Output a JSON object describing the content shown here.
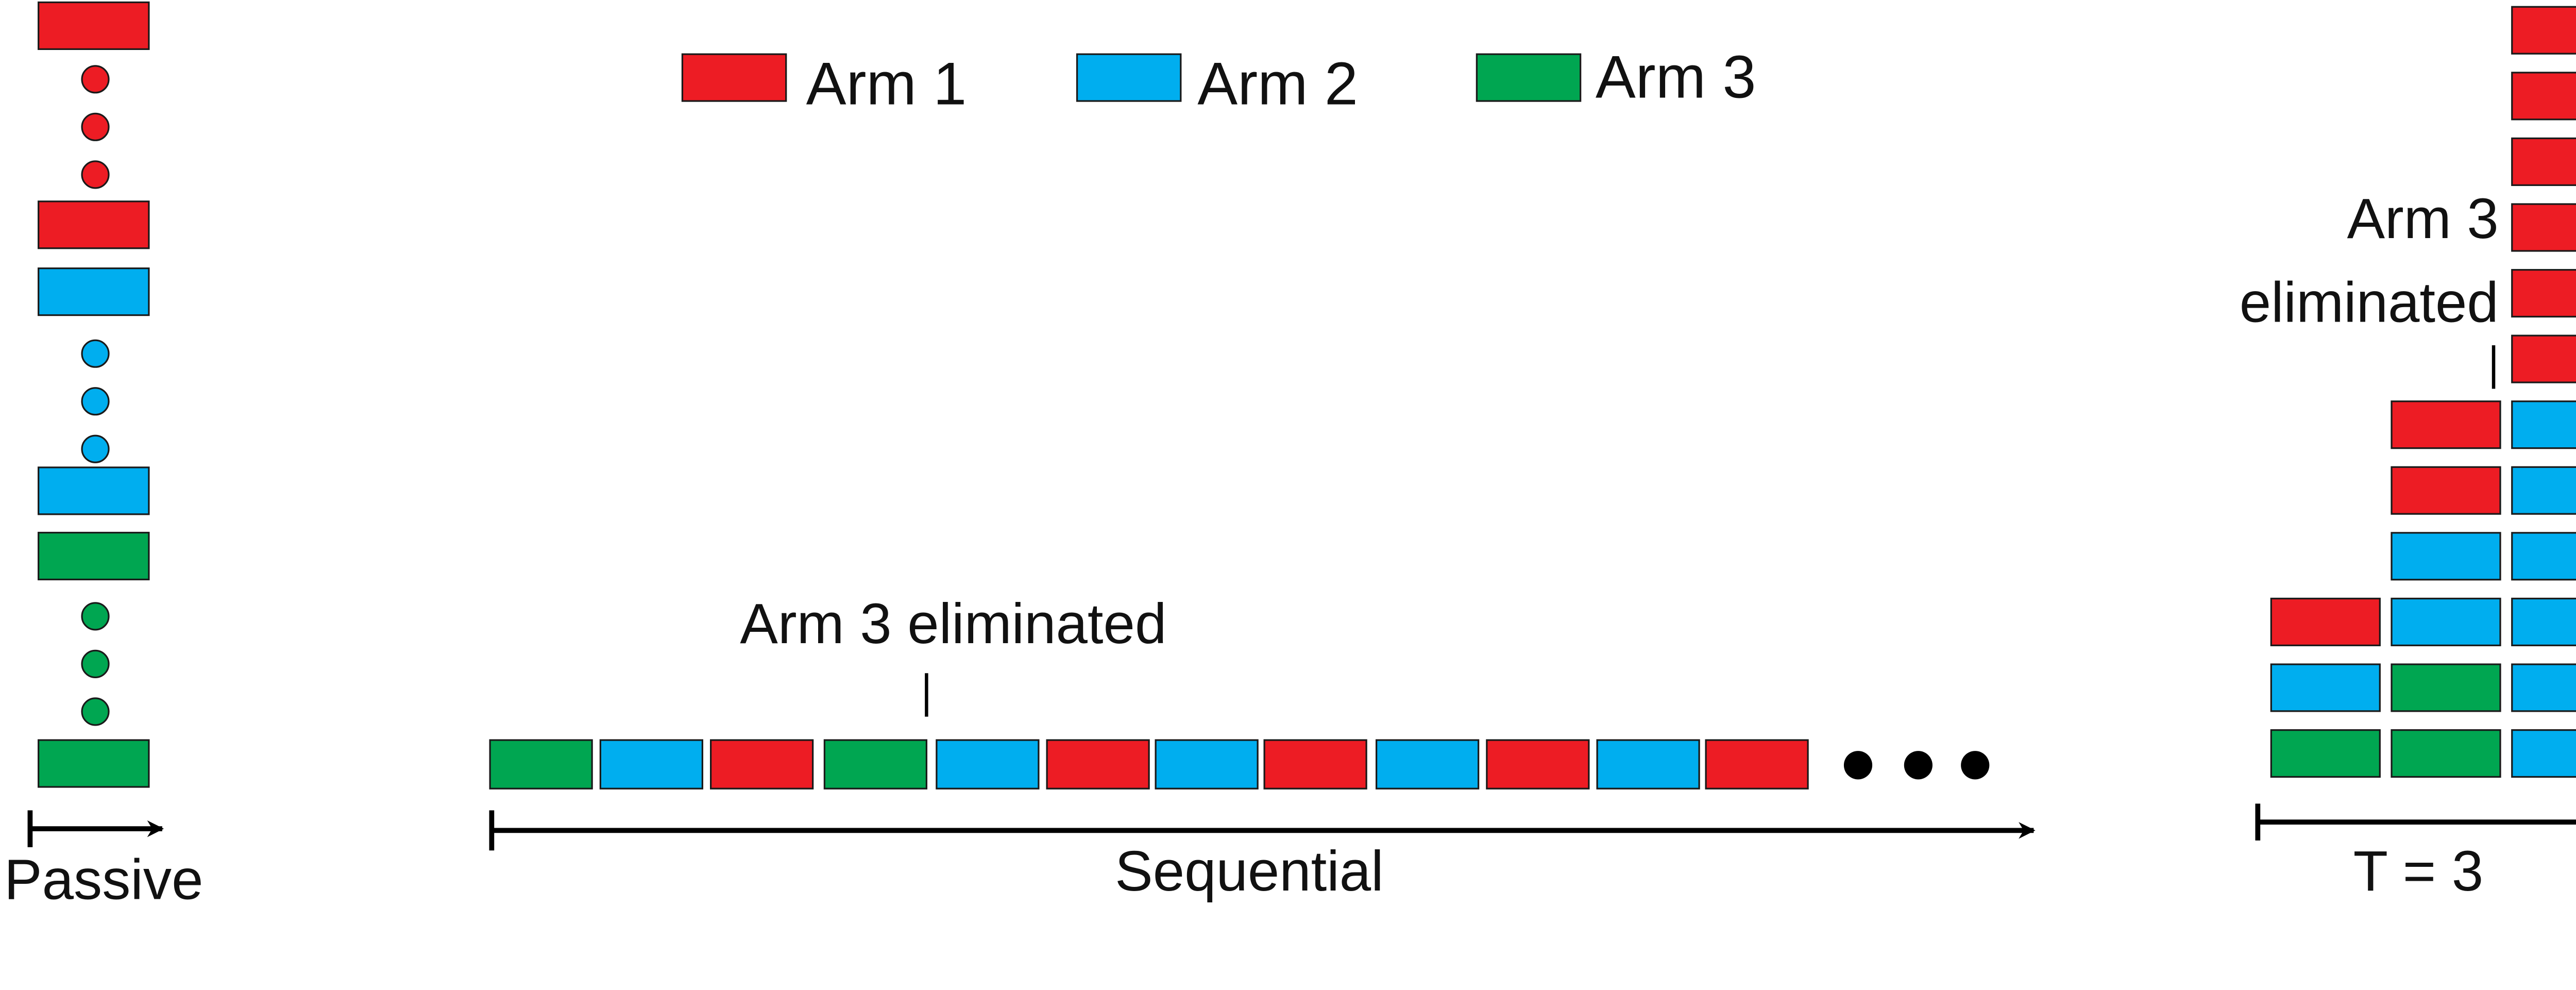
{
  "colors": {
    "arm1": "#ED1C24",
    "arm2": "#00AEEF",
    "arm3": "#00A651",
    "stroke": "#1a1a1a"
  },
  "legend": [
    {
      "label": "Arm 1",
      "color_key": "arm1"
    },
    {
      "label": "Arm 2",
      "color_key": "arm2"
    },
    {
      "label": "Arm 3",
      "color_key": "arm3"
    }
  ],
  "passive": {
    "label": "Passive",
    "sequence": [
      "arm1",
      "dots:arm1",
      "arm1",
      "arm2",
      "dots:arm2",
      "arm2",
      "arm3",
      "dots:arm3",
      "arm3"
    ]
  },
  "sequential": {
    "label": "Sequential",
    "annotation": "Arm 3 eliminated",
    "annotation_after_index": 3,
    "sequence": [
      "arm3",
      "arm2",
      "arm1",
      "arm3",
      "arm2",
      "arm1",
      "arm2",
      "arm1",
      "arm2",
      "arm1",
      "arm2",
      "arm1"
    ],
    "ellipsis_count": 3
  },
  "batched": {
    "label": "T = 3",
    "annotation_line1": "Arm 3",
    "annotation_line2": "eliminated",
    "columns": [
      [
        "arm3",
        "arm2",
        "arm1"
      ],
      [
        "arm3",
        "arm3",
        "arm2",
        "arm2",
        "arm1",
        "arm1"
      ],
      [
        "arm2",
        "arm2",
        "arm2",
        "arm2",
        "arm2",
        "arm2",
        "arm1",
        "arm1",
        "arm1",
        "arm1",
        "arm1",
        "arm1"
      ]
    ]
  }
}
